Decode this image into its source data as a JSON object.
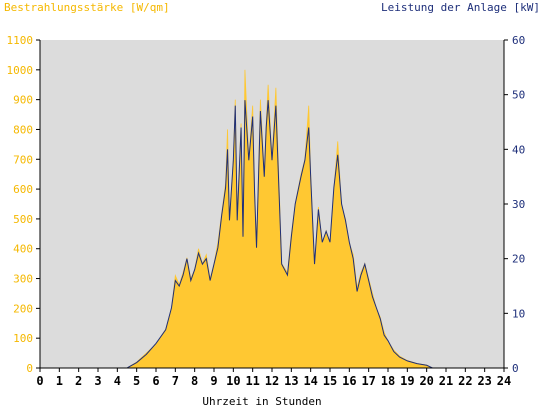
{
  "chart_data": {
    "type": "area",
    "left_title": "Bestrahlungsstärke [W/qm]",
    "right_title": "Leistung der Anlage [kW]",
    "xlabel": "Uhrzeit in Stunden",
    "xlim": [
      0,
      24
    ],
    "ylim_left": [
      0,
      1100
    ],
    "ylim_right": [
      0,
      60
    ],
    "x_ticks": [
      0,
      1,
      2,
      3,
      4,
      5,
      6,
      7,
      8,
      9,
      10,
      11,
      12,
      13,
      14,
      15,
      16,
      17,
      18,
      19,
      20,
      21,
      22,
      23,
      24
    ],
    "y_ticks_left": [
      0,
      100,
      200,
      300,
      400,
      500,
      600,
      700,
      800,
      900,
      1000,
      1100
    ],
    "y_ticks_right": [
      0,
      10,
      20,
      30,
      40,
      50,
      60
    ],
    "colors": {
      "irradiance": "#ffc832",
      "power": "#1e2f7a",
      "plot_bg": "#dcdcdc",
      "axis": "#000000"
    },
    "series": [
      {
        "name": "Bestrahlungsstärke [W/qm]",
        "axis": "left",
        "x": [
          0,
          4.5,
          5.0,
          5.5,
          6.0,
          6.5,
          6.8,
          7.0,
          7.2,
          7.4,
          7.6,
          7.8,
          8.0,
          8.2,
          8.4,
          8.6,
          8.8,
          9.0,
          9.2,
          9.4,
          9.6,
          9.7,
          9.8,
          10.0,
          10.1,
          10.2,
          10.4,
          10.5,
          10.6,
          10.8,
          11.0,
          11.1,
          11.2,
          11.4,
          11.6,
          11.7,
          11.8,
          12.0,
          12.2,
          12.5,
          12.8,
          13.0,
          13.2,
          13.5,
          13.7,
          13.9,
          14.0,
          14.2,
          14.4,
          14.6,
          14.8,
          15.0,
          15.2,
          15.4,
          15.6,
          15.8,
          16.0,
          16.2,
          16.4,
          16.6,
          16.8,
          17.0,
          17.2,
          17.4,
          17.6,
          17.8,
          18.0,
          18.3,
          18.6,
          19.0,
          19.5,
          20.0,
          20.3,
          24
        ],
        "y": [
          0,
          0,
          20,
          50,
          80,
          130,
          200,
          310,
          280,
          320,
          370,
          300,
          330,
          400,
          350,
          380,
          300,
          350,
          420,
          520,
          620,
          800,
          500,
          700,
          900,
          500,
          820,
          450,
          1000,
          700,
          880,
          600,
          400,
          900,
          650,
          820,
          950,
          700,
          940,
          350,
          320,
          450,
          550,
          650,
          700,
          880,
          650,
          350,
          540,
          420,
          460,
          420,
          600,
          760,
          540,
          500,
          420,
          380,
          270,
          320,
          350,
          300,
          250,
          200,
          170,
          120,
          90,
          60,
          40,
          25,
          15,
          10,
          0,
          0
        ]
      },
      {
        "name": "Leistung der Anlage [kW]",
        "axis": "right",
        "x": [
          0,
          4.5,
          5.0,
          5.5,
          6.0,
          6.5,
          6.8,
          7.0,
          7.2,
          7.4,
          7.6,
          7.8,
          8.0,
          8.2,
          8.4,
          8.6,
          8.8,
          9.0,
          9.2,
          9.4,
          9.6,
          9.7,
          9.8,
          10.0,
          10.1,
          10.2,
          10.4,
          10.5,
          10.6,
          10.8,
          11.0,
          11.1,
          11.2,
          11.4,
          11.6,
          11.7,
          11.8,
          12.0,
          12.2,
          12.5,
          12.8,
          13.0,
          13.2,
          13.5,
          13.7,
          13.9,
          14.0,
          14.2,
          14.4,
          14.6,
          14.8,
          15.0,
          15.2,
          15.4,
          15.6,
          15.8,
          16.0,
          16.2,
          16.4,
          16.6,
          16.8,
          17.0,
          17.2,
          17.4,
          17.6,
          17.8,
          18.0,
          18.3,
          18.6,
          19.0,
          19.5,
          20.0,
          20.3,
          24
        ],
        "y": [
          0,
          0,
          1,
          2.5,
          4.5,
          7,
          11,
          16,
          15,
          17,
          20,
          16,
          18,
          21,
          19,
          20,
          16,
          19,
          22,
          28,
          33,
          40,
          27,
          38,
          48,
          27,
          44,
          24,
          49,
          38,
          46,
          32,
          22,
          47,
          35,
          44,
          49,
          38,
          48,
          19,
          17,
          24,
          30,
          35,
          38,
          44,
          35,
          19,
          29,
          23,
          25,
          23,
          33,
          39,
          30,
          27,
          23,
          20,
          14,
          17,
          19,
          16,
          13,
          11,
          9,
          6,
          5,
          3,
          2,
          1.3,
          0.8,
          0.5,
          0,
          0
        ]
      }
    ]
  }
}
